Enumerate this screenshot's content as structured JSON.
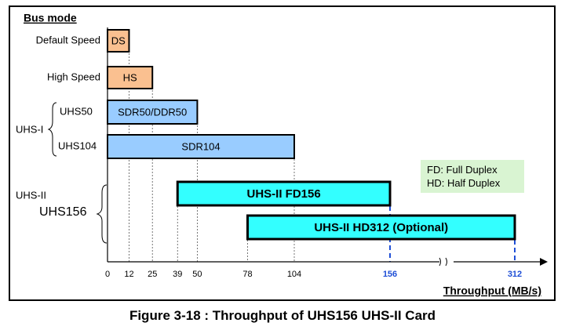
{
  "chart_data": {
    "type": "bar",
    "orientation": "horizontal",
    "legend_title": "Bus mode",
    "xlabel": "Throughput (MB/s)",
    "xlim": [
      0,
      312
    ],
    "x_ticks": [
      {
        "value": 0,
        "label": "0",
        "highlight": false
      },
      {
        "value": 12,
        "label": "12",
        "highlight": false
      },
      {
        "value": 25,
        "label": "25",
        "highlight": false
      },
      {
        "value": 39,
        "label": "39",
        "highlight": false
      },
      {
        "value": 50,
        "label": "50",
        "highlight": false
      },
      {
        "value": 78,
        "label": "78",
        "highlight": false
      },
      {
        "value": 104,
        "label": "104",
        "highlight": false
      },
      {
        "value": 156,
        "label": "156",
        "highlight": true
      },
      {
        "value": 312,
        "label": "312",
        "highlight": true
      }
    ],
    "axis_break": true,
    "groups": [
      {
        "label": "",
        "rows": [
          "Default Speed"
        ]
      },
      {
        "label": "",
        "rows": [
          "High Speed"
        ]
      },
      {
        "label": "UHS-I",
        "rows": [
          "UHS50",
          "UHS104"
        ]
      },
      {
        "label": "UHS-II",
        "rows": [
          "UHS156"
        ]
      }
    ],
    "bars": [
      {
        "row": "Default Speed",
        "label": "DS",
        "start": 0,
        "end": 12,
        "color": "#fac090",
        "bold": false
      },
      {
        "row": "High Speed",
        "label": "HS",
        "start": 0,
        "end": 25,
        "color": "#fac090",
        "bold": false
      },
      {
        "row": "UHS50",
        "label": "SDR50/DDR50",
        "start": 0,
        "end": 50,
        "color": "#99ccff",
        "bold": false
      },
      {
        "row": "UHS104",
        "label": "SDR104",
        "start": 0,
        "end": 104,
        "color": "#99ccff",
        "bold": false
      },
      {
        "row": "UHS156",
        "label": "UHS-II FD156",
        "start": 39,
        "end": 156,
        "color": "#33ffff",
        "bold": true
      },
      {
        "row": "UHS156",
        "label": "UHS-II HD312 (Optional)",
        "start": 78,
        "end": 312,
        "color": "#33ffff",
        "bold": true
      }
    ]
  },
  "legend": {
    "line1": "FD: Full Duplex",
    "line2": "HD: Half Duplex"
  },
  "caption": "Figure 3-18 : Throughput of UHS156 UHS-II Card",
  "colors": {
    "highlight_tick": "#1f4fd6",
    "legend_bg": "#d9f4d2"
  }
}
